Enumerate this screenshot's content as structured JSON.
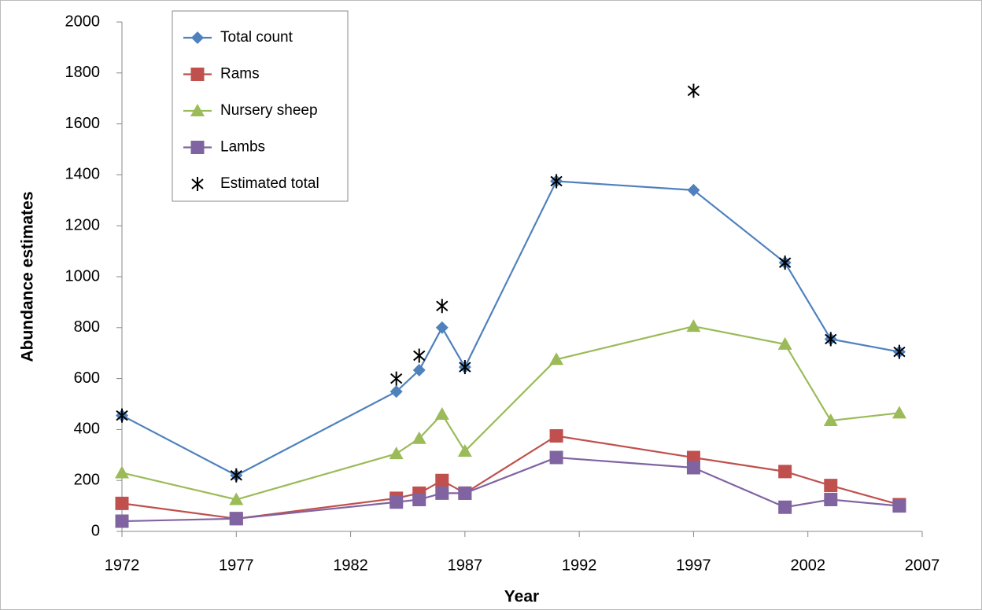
{
  "chart_data": {
    "type": "line",
    "x_label": "Year",
    "y_label": "Abundance estimates",
    "x": [
      1972,
      1977,
      1984,
      1985,
      1986,
      1987,
      1991,
      1997,
      2001,
      2003,
      2006
    ],
    "xlim": [
      1972,
      2007
    ],
    "xticks": [
      1972,
      1977,
      1982,
      1987,
      1992,
      1997,
      2002,
      2007
    ],
    "ylim": [
      0,
      2000
    ],
    "yticks": [
      0,
      200,
      400,
      600,
      800,
      1000,
      1200,
      1400,
      1600,
      1800,
      2000
    ],
    "grid": false,
    "legend": "top-left",
    "series": [
      {
        "name": "Total count",
        "color": "#4f81bd",
        "marker": "diamond",
        "line": true,
        "values": [
          455,
          220,
          549,
          633,
          800,
          645,
          1375,
          1340,
          1055,
          755,
          705
        ]
      },
      {
        "name": "Rams",
        "color": "#c0504d",
        "marker": "square",
        "line": true,
        "values": [
          110,
          50,
          130,
          150,
          200,
          150,
          375,
          290,
          235,
          180,
          105
        ]
      },
      {
        "name": "Nursery sheep",
        "color": "#9bbb59",
        "marker": "triangle",
        "line": true,
        "values": [
          230,
          125,
          305,
          365,
          460,
          315,
          675,
          805,
          735,
          435,
          465
        ]
      },
      {
        "name": "Lambs",
        "color": "#8064a2",
        "marker": "square",
        "line": true,
        "values": [
          40,
          50,
          115,
          125,
          150,
          150,
          290,
          250,
          95,
          125,
          100
        ]
      },
      {
        "name": "Estimated total",
        "color": "#000000",
        "marker": "star",
        "line": false,
        "values": [
          455,
          220,
          600,
          690,
          885,
          645,
          1375,
          1730,
          1055,
          755,
          705
        ]
      }
    ]
  }
}
